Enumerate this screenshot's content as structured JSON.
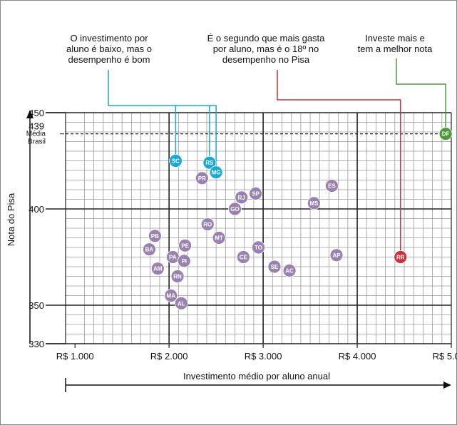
{
  "chart_data": {
    "type": "scatter",
    "ylabel": "Nota do Pisa",
    "xlabel": "Investimento médio por aluno anual",
    "xlim": [
      900,
      5000
    ],
    "ylim": [
      330,
      450
    ],
    "x_ticks": [
      1000,
      2000,
      3000,
      4000,
      5000
    ],
    "x_tick_labels": [
      "R$ 1.000",
      "R$ 2.000",
      "R$ 3.000",
      "R$ 4.000",
      "R$ 5.000"
    ],
    "y_ticks": [
      330,
      350,
      400,
      439,
      450
    ],
    "y_tick_labels": [
      "330",
      "350",
      "400",
      "439",
      "450"
    ],
    "reference_line": {
      "value": 439,
      "label_lines": [
        "Média",
        "Brasil"
      ]
    },
    "grid": true,
    "colors": {
      "default": "#9a82b0",
      "cyan": "#1aa8d8",
      "red": "#c8323a",
      "green": "#4a9a3c"
    },
    "points": [
      {
        "label": "SC",
        "x": 2070,
        "y": 425,
        "color": "cyan"
      },
      {
        "label": "RS",
        "x": 2430,
        "y": 424,
        "color": "cyan"
      },
      {
        "label": "MG",
        "x": 2500,
        "y": 419,
        "color": "cyan"
      },
      {
        "label": "PR",
        "x": 2350,
        "y": 416,
        "color": "default"
      },
      {
        "label": "SP",
        "x": 2920,
        "y": 408,
        "color": "default"
      },
      {
        "label": "RJ",
        "x": 2770,
        "y": 406,
        "color": "default"
      },
      {
        "label": "GO",
        "x": 2700,
        "y": 400,
        "color": "default"
      },
      {
        "label": "ES",
        "x": 3730,
        "y": 412,
        "color": "default"
      },
      {
        "label": "MS",
        "x": 3540,
        "y": 403,
        "color": "default"
      },
      {
        "label": "RO",
        "x": 2410,
        "y": 392,
        "color": "default"
      },
      {
        "label": "MT",
        "x": 2530,
        "y": 385,
        "color": "default"
      },
      {
        "label": "PB",
        "x": 1850,
        "y": 386,
        "color": "default"
      },
      {
        "label": "BA",
        "x": 1790,
        "y": 379,
        "color": "default"
      },
      {
        "label": "PE",
        "x": 2170,
        "y": 381,
        "color": "default"
      },
      {
        "label": "TO",
        "x": 2950,
        "y": 380,
        "color": "default"
      },
      {
        "label": "PA",
        "x": 2040,
        "y": 375,
        "color": "default"
      },
      {
        "label": "PI",
        "x": 2160,
        "y": 373,
        "color": "default"
      },
      {
        "label": "CE",
        "x": 2790,
        "y": 375,
        "color": "default"
      },
      {
        "label": "AP",
        "x": 3780,
        "y": 376,
        "color": "default"
      },
      {
        "label": "AM",
        "x": 1880,
        "y": 369,
        "color": "default"
      },
      {
        "label": "SE",
        "x": 3120,
        "y": 370,
        "color": "default"
      },
      {
        "label": "AC",
        "x": 3280,
        "y": 368,
        "color": "default"
      },
      {
        "label": "RN",
        "x": 2090,
        "y": 365,
        "color": "default"
      },
      {
        "label": "MA",
        "x": 2020,
        "y": 355,
        "color": "default"
      },
      {
        "label": "AL",
        "x": 2130,
        "y": 351,
        "color": "default"
      },
      {
        "label": "RR",
        "x": 4460,
        "y": 375,
        "color": "red"
      },
      {
        "label": "DF",
        "x": 4940,
        "y": 439,
        "color": "green"
      }
    ]
  },
  "annotations": {
    "left": {
      "lines": [
        "O investimento por",
        "aluno é baixo, mas o",
        "desempenho é bom"
      ]
    },
    "middle": {
      "lines": [
        "É o segundo que mais gasta",
        "por aluno, mas é o 18º no",
        "desempenho no Pisa"
      ]
    },
    "right": {
      "lines": [
        "Investe mais e",
        "tem a melhor nota"
      ]
    }
  }
}
